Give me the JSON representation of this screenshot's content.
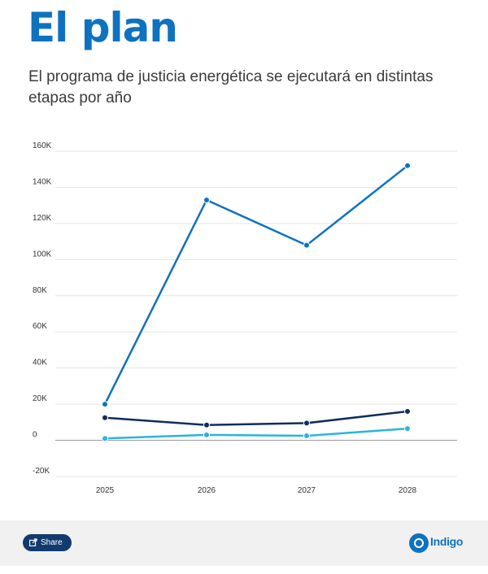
{
  "header": {
    "title": "El plan",
    "subtitle": "El programa de justicia energética se ejecutará en distintas etapas por año"
  },
  "footer": {
    "share_label": "Share",
    "logo_text": "Indigo",
    "logo_icon": "indigo-circle-icon",
    "share_icon": "share-arrow-icon"
  },
  "colors": {
    "series_1": "#0e72c0",
    "series_2": "#0f2d5c",
    "series_3": "#2ab5dc",
    "grid": "#e4e4e4",
    "zero_line": "#9a9a9a"
  },
  "chart_data": {
    "type": "line",
    "x": [
      "2025",
      "2026",
      "2027",
      "2028"
    ],
    "ylim": [
      -20000,
      160000
    ],
    "yticks": [
      -20000,
      0,
      20000,
      40000,
      60000,
      80000,
      100000,
      120000,
      140000,
      160000
    ],
    "ytick_labels": [
      "-20K",
      "0",
      "20K",
      "40K",
      "60K",
      "80K",
      "100K",
      "120K",
      "140K",
      "160K"
    ],
    "grid": true,
    "series": [
      {
        "values": [
          20000,
          133000,
          108000,
          152000
        ]
      },
      {
        "values": [
          12500,
          8500,
          9500,
          16000
        ]
      },
      {
        "values": [
          1000,
          3000,
          2500,
          6500
        ]
      }
    ]
  }
}
